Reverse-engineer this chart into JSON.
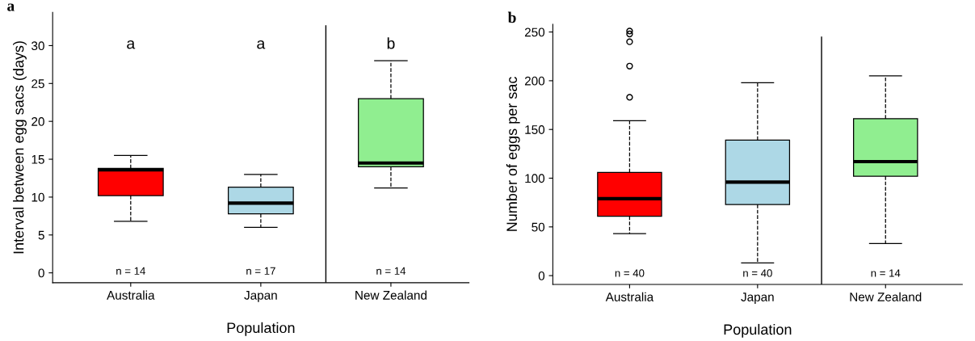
{
  "chart_data": [
    {
      "type": "box",
      "title": "a",
      "xlabel": "Population",
      "ylabel": "Interval between egg sacs (days)",
      "categories": [
        "Australia",
        "Japan",
        "New Zealand"
      ],
      "colors": [
        "#ff0000",
        "#add8e6",
        "#90ee90"
      ],
      "boxes": [
        {
          "low": 6.8,
          "q1": 10.2,
          "median": 13.6,
          "q3": 13.8,
          "high": 15.5
        },
        {
          "low": 6.0,
          "q1": 7.8,
          "median": 9.2,
          "q3": 11.3,
          "high": 13.0
        },
        {
          "low": 11.2,
          "q1": 14.0,
          "median": 14.5,
          "q3": 23.0,
          "high": 28.0
        }
      ],
      "ylim": [
        -1.3,
        34.4
      ],
      "yticks": [
        0,
        5,
        10,
        15,
        20,
        25,
        30
      ],
      "grid": false,
      "marker": "circle",
      "annotations": [
        "a",
        "a",
        "b",
        "n = 14",
        "n = 17",
        "n = 14"
      ]
    },
    {
      "type": "box",
      "title": "b",
      "xlabel": "Population",
      "ylabel": "Number of eggs per sac",
      "categories": [
        "Australia",
        "Japan",
        "New Zealand"
      ],
      "colors": [
        "#ff0000",
        "#add8e6",
        "#90ee90"
      ],
      "boxes": [
        {
          "low": 43,
          "q1": 61,
          "median": 79,
          "q3": 106,
          "high": 159,
          "outliers": [
            183,
            215,
            240,
            248,
            251
          ]
        },
        {
          "low": 13,
          "q1": 73,
          "median": 96,
          "q3": 139,
          "high": 198
        },
        {
          "low": 33,
          "q1": 102,
          "median": 117,
          "q3": 161,
          "high": 205
        }
      ],
      "ylim": [
        -9,
        258
      ],
      "yticks": [
        0,
        50,
        100,
        150,
        200,
        250
      ],
      "grid": false,
      "marker": "circle",
      "annotations": [
        "n = 40",
        "n = 40",
        "n = 14"
      ]
    }
  ]
}
